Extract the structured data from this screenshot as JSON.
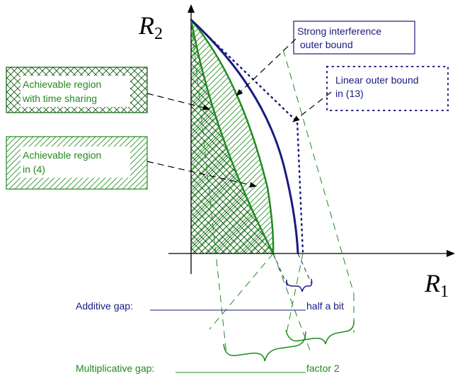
{
  "axes": {
    "y_label": "R",
    "y_sub": "2",
    "x_label": "R",
    "x_sub": "1"
  },
  "labels": {
    "strong_interference": [
      "Strong interference",
      " outer bound"
    ],
    "linear_outer": [
      "Linear outer bound",
      "in (13)"
    ],
    "achievable_ts": [
      "Achievable region",
      "with time sharing"
    ],
    "achievable_4": [
      "Achievable region",
      "in (4)"
    ]
  },
  "gaps": {
    "additive_label": "Additive gap:",
    "additive_value": "half a bit",
    "multiplicative_label": "Multiplicative gap:",
    "multiplicative_value": "factor 2"
  },
  "colors": {
    "navy": "#1a1a80",
    "green": "#1f8a1f",
    "dark_green": "#0d5c0d",
    "axis": "#000000"
  }
}
